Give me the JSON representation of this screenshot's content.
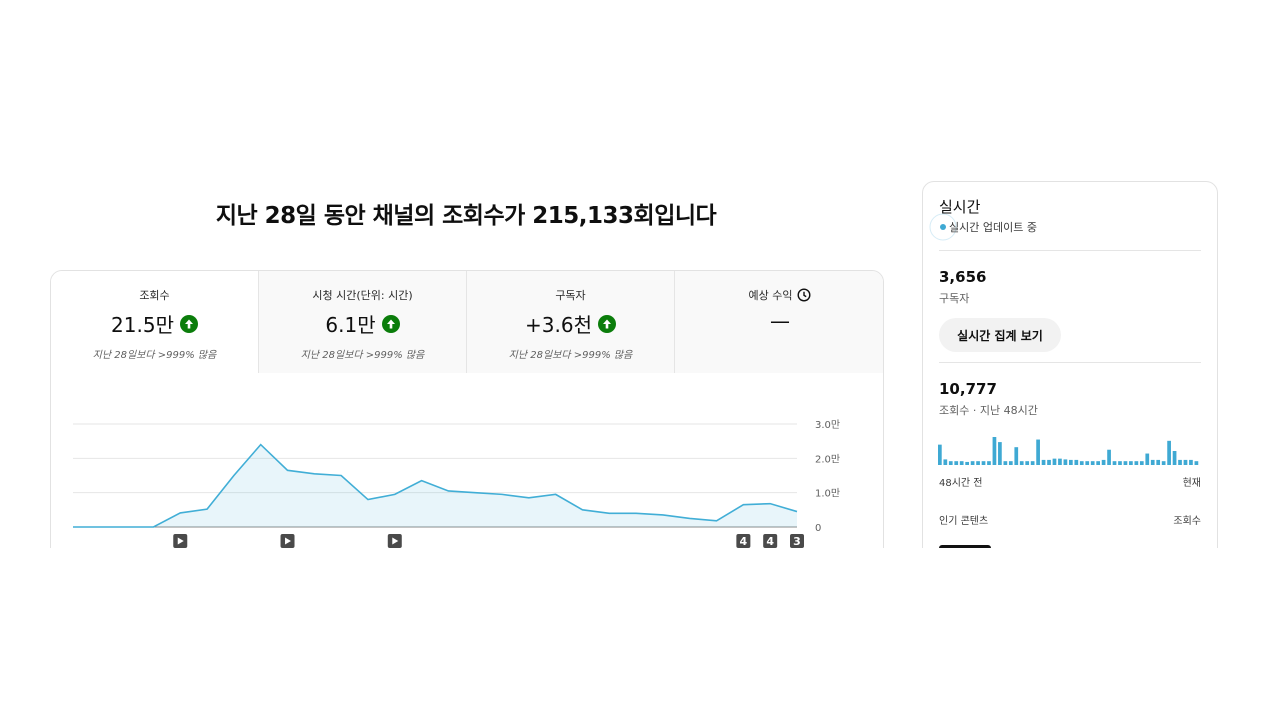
{
  "header": {
    "title": "지난 28일 동안 채널의 조회수가 215,133회입니다"
  },
  "metric_tabs": [
    {
      "label": "조회수",
      "value": "21.5만",
      "comparison": "지난 28일보다 >999% 많음"
    },
    {
      "label": "시청 시간(단위: 시간)",
      "value": "6.1만",
      "comparison": "지난 28일보다 >999% 많음"
    },
    {
      "label": "구독자",
      "value": "+3.6천",
      "comparison": "지난 28일보다 >999% 많음"
    },
    {
      "label": "예상 수익",
      "value": "—"
    }
  ],
  "chart_markers": [
    "4",
    "4",
    "3"
  ],
  "chart_data": [
    {
      "type": "line",
      "categories": [
        null,
        null,
        null,
        null,
        null,
        null,
        null,
        null,
        null,
        null,
        null,
        null,
        null,
        null,
        null,
        null,
        null,
        null,
        null,
        null,
        null,
        null,
        null,
        null,
        null,
        null,
        null,
        null
      ],
      "series": [
        {
          "color": "#41aed6",
          "values": [
            0,
            0,
            0,
            0,
            4100,
            5200,
            15000,
            24000,
            16500,
            15500,
            15000,
            8000,
            9500,
            13500,
            10500,
            10000,
            9500,
            8500,
            9500,
            5000,
            4000,
            4000,
            3500,
            2500,
            1800,
            6500,
            6800,
            4500
          ]
        }
      ],
      "ylim": [
        0,
        30000
      ],
      "yticks": [
        {
          "value": 0,
          "label": "0"
        },
        {
          "value": 10000,
          "label": "1.0만"
        },
        {
          "value": 20000,
          "label": "2.0만"
        },
        {
          "value": 30000,
          "label": "3.0만"
        }
      ],
      "grid": true
    },
    {
      "type": "bar",
      "color": "#3fa9d3",
      "values": [
        800,
        220,
        150,
        150,
        150,
        120,
        150,
        150,
        150,
        150,
        1100,
        900,
        150,
        150,
        700,
        150,
        150,
        150,
        1000,
        200,
        200,
        250,
        250,
        220,
        200,
        200,
        150,
        150,
        150,
        150,
        200,
        600,
        150,
        150,
        150,
        150,
        150,
        150,
        450,
        200,
        200,
        150,
        950,
        550,
        200,
        200,
        200,
        150
      ]
    }
  ],
  "realtime": {
    "title": "실시간",
    "status": "실시간 업데이트 중",
    "subscribers": "3,656",
    "subscribers_label": "구독자",
    "button": "실시간 집계 보기",
    "views": "10,777",
    "views_label": "조회수 · 지난 48시간",
    "axis_start": "48시간 전",
    "axis_end": "현재",
    "top_content": "인기 콘텐츠",
    "top_content_metric": "조회수"
  }
}
